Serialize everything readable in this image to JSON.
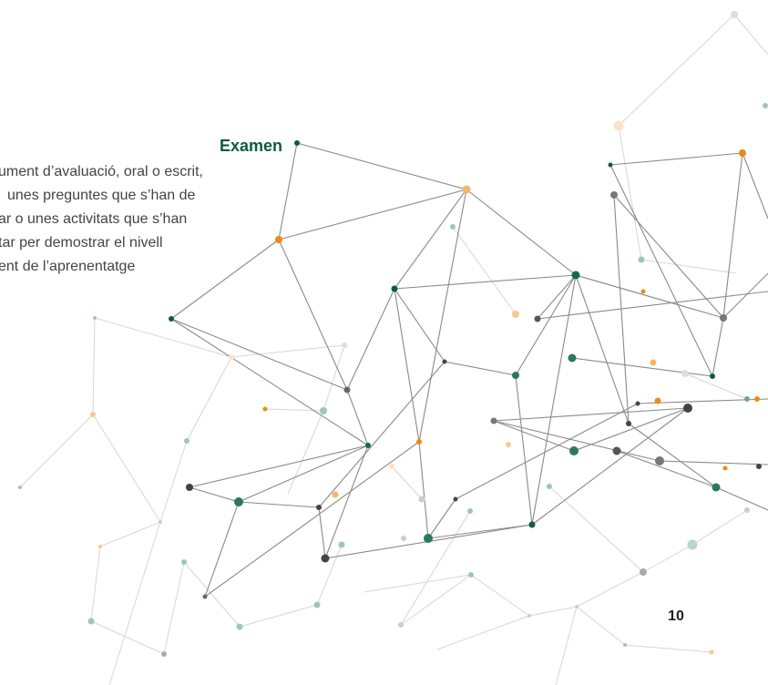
{
  "term": "Examen",
  "definition_lines": [
    "ument d’avaluació, oral o escrit,",
    "unes preguntes que s’han de",
    "ar o unes activitats que s’han",
    "tar per demostrar el nivell",
    "ent de l’aprenentatge"
  ],
  "page_number": "10"
}
